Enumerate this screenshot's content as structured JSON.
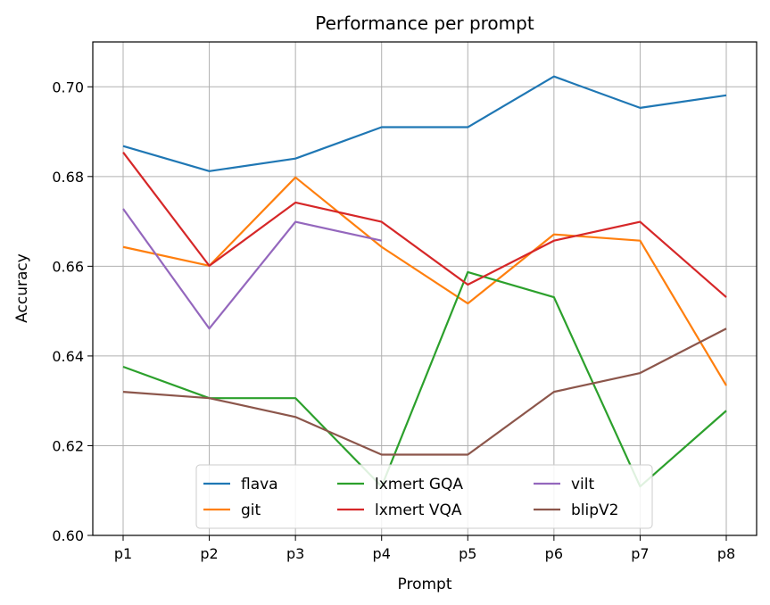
{
  "chart_data": {
    "type": "line",
    "title": "Performance per prompt",
    "xlabel": "Prompt",
    "ylabel": "Accuracy",
    "categories": [
      "p1",
      "p2",
      "p3",
      "p4",
      "p5",
      "p6",
      "p7",
      "p8"
    ],
    "ylim": [
      0.6,
      0.71
    ],
    "yticks": [
      0.6,
      0.62,
      0.64,
      0.66,
      0.68,
      0.7
    ],
    "ytick_labels": [
      "0.60",
      "0.62",
      "0.64",
      "0.66",
      "0.68",
      "0.70"
    ],
    "grid": true,
    "legend_position": "lower-center",
    "series": [
      {
        "name": "flava",
        "color": "#1f77b4",
        "values": [
          0.6868,
          0.6812,
          0.684,
          0.691,
          0.691,
          0.7023,
          0.6953,
          0.6981
        ]
      },
      {
        "name": "git",
        "color": "#ff7f0e",
        "values": [
          0.6643,
          0.6601,
          0.6798,
          0.6643,
          0.6517,
          0.6671,
          0.6657,
          0.6334
        ]
      },
      {
        "name": "lxmert GQA",
        "color": "#2ca02c",
        "values": [
          0.6376,
          0.6306,
          0.6306,
          0.6109,
          0.6587,
          0.6531,
          0.6109,
          0.6278
        ]
      },
      {
        "name": "lxmert VQA",
        "color": "#d62728",
        "values": [
          0.6854,
          0.6601,
          0.6742,
          0.6699,
          0.6559,
          0.6657,
          0.6699,
          0.6531
        ]
      },
      {
        "name": "vilt",
        "color": "#9467bd",
        "values": [
          0.6728,
          0.6461,
          0.6699,
          0.6657,
          null,
          null,
          null,
          null
        ]
      },
      {
        "name": "blipV2",
        "color": "#8c564b",
        "values": [
          0.632,
          0.6306,
          0.6264,
          0.618,
          0.618,
          0.632,
          0.6362,
          0.6461
        ]
      }
    ]
  }
}
